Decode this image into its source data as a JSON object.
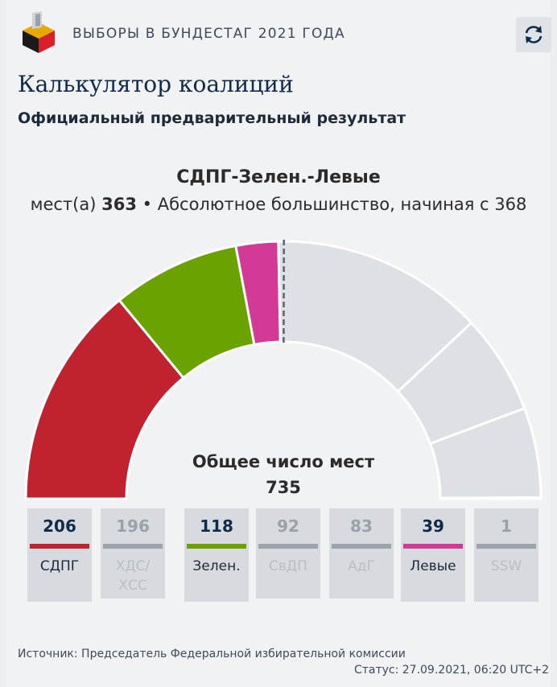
{
  "header": {
    "title": "ВЫБОРЫ В БУНДЕСТАГ 2021 ГОДА",
    "refresh_icon": "refresh-icon",
    "logo_icon": "ballot-box-icon"
  },
  "page": {
    "title": "Калькулятор коалиций",
    "subtitle": "Официальный предварительный результат"
  },
  "coalition": {
    "name": "СДПГ-Зелен.-Левые",
    "seats_prefix": "мест(а)",
    "seats": "363",
    "separator": "•",
    "majority_text": "Абсолютное большинство, начиная с 368"
  },
  "totals": {
    "label": "Общее число мест",
    "value": "735"
  },
  "footer": {
    "source": "Источник: Председатель Федеральной избирательной комиссии",
    "status": "Статус: 27.09.2021, 06:20 UTC+2"
  },
  "chart_data": {
    "type": "pie",
    "variant": "half-donut",
    "total_seats": 735,
    "majority_threshold": 368,
    "parties": [
      {
        "name": "СДПГ",
        "seats": 206,
        "selected": true,
        "color": "#c0222f"
      },
      {
        "name": "ХДС/ХСС",
        "seats": 196,
        "selected": false,
        "color": "#9ba3ab"
      },
      {
        "name": "Зелен.",
        "seats": 118,
        "selected": true,
        "color": "#6aa200"
      },
      {
        "name": "СвДП",
        "seats": 92,
        "selected": false,
        "color": "#9ba3ab"
      },
      {
        "name": "АдГ",
        "seats": 83,
        "selected": false,
        "color": "#9ba3ab"
      },
      {
        "name": "Левые",
        "seats": 39,
        "selected": true,
        "color": "#d23a96"
      },
      {
        "name": "SSW",
        "seats": 1,
        "selected": false,
        "color": "#9ba3ab"
      }
    ],
    "unselected_segment_color": "#dde0e4",
    "selected_text_color": "#102a4a",
    "unselected_text_color": "#9aa1a8",
    "unselected_label_color": "#b8bec4"
  }
}
